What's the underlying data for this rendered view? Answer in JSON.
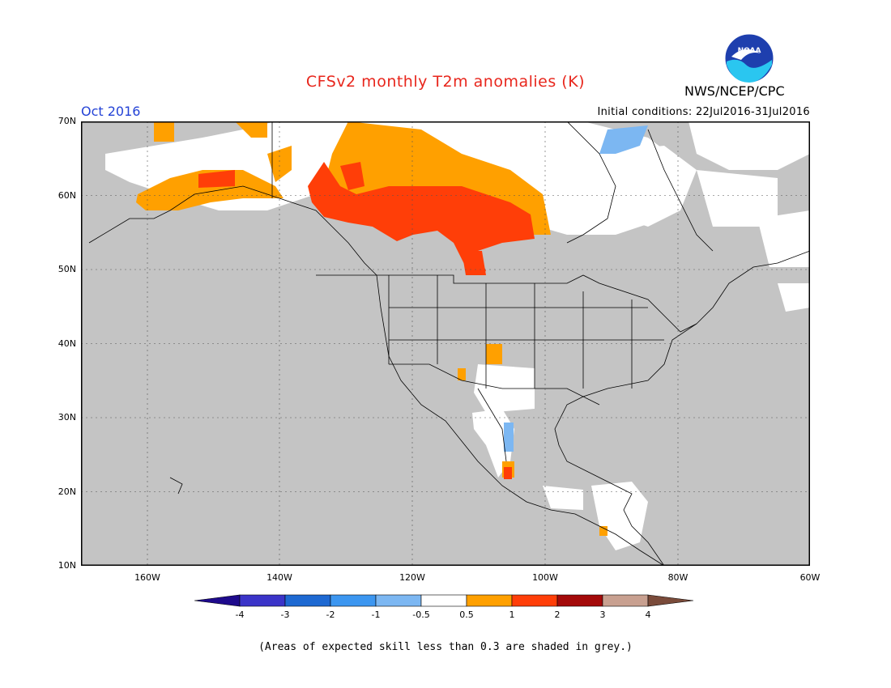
{
  "title": "CFSv2 monthly T2m anomalies (K)",
  "month": "Oct 2016",
  "initial_conditions": "Initial conditions: 22Jul2016-31Jul2016",
  "organization": "NWS/NCEP/CPC",
  "logo_text": "NOAA",
  "footnote": "(Areas of expected skill less than 0.3 are shaded in grey.)",
  "map": {
    "lon_range": [
      -170,
      -60
    ],
    "lat_range": [
      10,
      70
    ],
    "lat_labels": [
      "70N",
      "60N",
      "50N",
      "40N",
      "30N",
      "20N",
      "10N"
    ],
    "lon_labels": [
      "160W",
      "140W",
      "120W",
      "100W",
      "80W",
      "60W"
    ],
    "colors": {
      "ocean_land_grey": "#c4c4c4",
      "neutral": "#ffffff",
      "warm_05_1": "#ffa000",
      "warm_1_2": "#ff3e08",
      "cool_m1_m05": "#7cb7f2"
    }
  },
  "colorbar": {
    "labels": [
      "-4",
      "-3",
      "-2",
      "-1",
      "-0.5",
      "0.5",
      "1",
      "2",
      "3",
      "4"
    ],
    "colors": [
      "#1e0a8c",
      "#3b34c8",
      "#1e69d2",
      "#3c96f0",
      "#7cb7f2",
      "#ffffff",
      "#ffa000",
      "#ff3e08",
      "#a40a0a",
      "#c8a090",
      "#7a4b3a"
    ]
  }
}
